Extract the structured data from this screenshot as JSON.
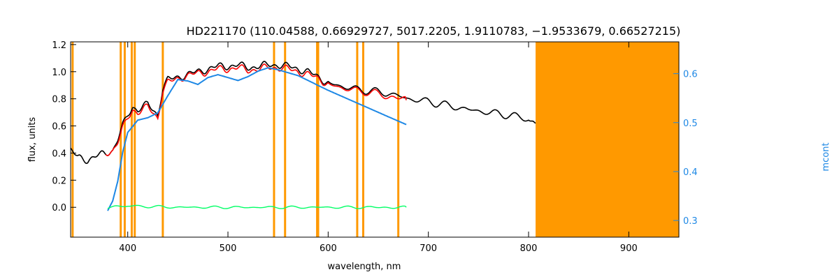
{
  "chart_data": {
    "type": "line",
    "title": "HD221170    (110.04588, 0.66929727, 5017.2205, 1.9110783, −1.9533679, 0.66527215)",
    "xlabel": "wavelength, nm",
    "ylabel": "flux, units",
    "y2label": "mcont",
    "xlim": [
      343,
      950
    ],
    "ylim": [
      -0.22,
      1.22
    ],
    "y2lim": [
      0.266,
      0.665
    ],
    "xticks": [
      400,
      500,
      600,
      700,
      800,
      900
    ],
    "yticks": [
      0.0,
      0.2,
      0.4,
      0.6,
      0.8,
      1.0,
      1.2
    ],
    "y2ticks": [
      0.3,
      0.4,
      0.5,
      0.6
    ],
    "xtick_labels": [
      "400",
      "500",
      "600",
      "700",
      "800",
      "900"
    ],
    "ytick_labels": [
      "0.0",
      "0.2",
      "0.4",
      "0.6",
      "0.8",
      "1.0",
      "1.2"
    ],
    "y2tick_labels": [
      "0.3",
      "0.4",
      "0.5",
      "0.6"
    ],
    "masked_region": [
      807,
      950
    ],
    "masked_lines": [
      345,
      393,
      397,
      404,
      407,
      435,
      546,
      557,
      589,
      590,
      629,
      635,
      670
    ],
    "colors": {
      "observed": "#000000",
      "model": "#ff0000",
      "continuum": "#1e88e5",
      "residual": "#00ff66",
      "mask": "#ff9900"
    },
    "series": [
      {
        "role": "observed",
        "x": [
          343,
          350,
          360,
          370,
          378,
          385,
          390,
          395,
          400,
          405,
          410,
          420,
          430,
          435,
          440,
          450,
          460,
          470,
          480,
          490,
          500,
          510,
          520,
          530,
          540,
          550,
          560,
          570,
          580,
          590,
          600,
          620,
          640,
          660,
          680,
          700,
          720,
          740,
          760,
          780,
          800,
          807
        ],
        "y": [
          0.42,
          0.37,
          0.35,
          0.38,
          0.4,
          0.42,
          0.5,
          0.6,
          0.68,
          0.74,
          0.72,
          0.76,
          0.68,
          0.88,
          0.94,
          0.96,
          0.98,
          1.0,
          1.02,
          1.04,
          1.04,
          1.05,
          1.03,
          1.04,
          1.05,
          1.05,
          1.04,
          1.02,
          1.0,
          0.96,
          0.92,
          0.88,
          0.86,
          0.84,
          0.8,
          0.78,
          0.75,
          0.72,
          0.7,
          0.68,
          0.65,
          0.62
        ]
      },
      {
        "role": "model",
        "x": [
          378,
          385,
          390,
          395,
          400,
          405,
          410,
          420,
          430,
          435,
          440,
          450,
          460,
          470,
          480,
          490,
          500,
          510,
          520,
          530,
          540,
          550,
          560,
          570,
          580,
          590,
          600,
          620,
          640,
          660,
          678
        ],
        "y": [
          0.4,
          0.42,
          0.48,
          0.58,
          0.66,
          0.72,
          0.7,
          0.74,
          0.66,
          0.86,
          0.92,
          0.95,
          0.97,
          0.99,
          1.0,
          1.02,
          1.02,
          1.03,
          1.01,
          1.02,
          1.03,
          1.03,
          1.02,
          1.0,
          0.98,
          0.95,
          0.91,
          0.87,
          0.85,
          0.82,
          0.79
        ]
      },
      {
        "role": "continuum",
        "axis": "right",
        "x": [
          380,
          385,
          390,
          395,
          400,
          410,
          420,
          430,
          440,
          450,
          460,
          470,
          480,
          490,
          500,
          510,
          520,
          530,
          540,
          550,
          560,
          570,
          580,
          590,
          600,
          620,
          640,
          660,
          678
        ],
        "y": [
          0.32,
          0.34,
          0.38,
          0.44,
          0.48,
          0.505,
          0.51,
          0.52,
          0.555,
          0.588,
          0.585,
          0.578,
          0.592,
          0.598,
          0.592,
          0.586,
          0.594,
          0.605,
          0.612,
          0.608,
          0.602,
          0.596,
          0.586,
          0.576,
          0.566,
          0.548,
          0.53,
          0.512,
          0.496
        ]
      },
      {
        "role": "residual",
        "x": [
          380,
          400,
          450,
          500,
          550,
          600,
          650,
          678
        ],
        "y": [
          0.0,
          0.01,
          0.0,
          0.0,
          0.0,
          0.0,
          0.0,
          0.0
        ]
      }
    ]
  }
}
